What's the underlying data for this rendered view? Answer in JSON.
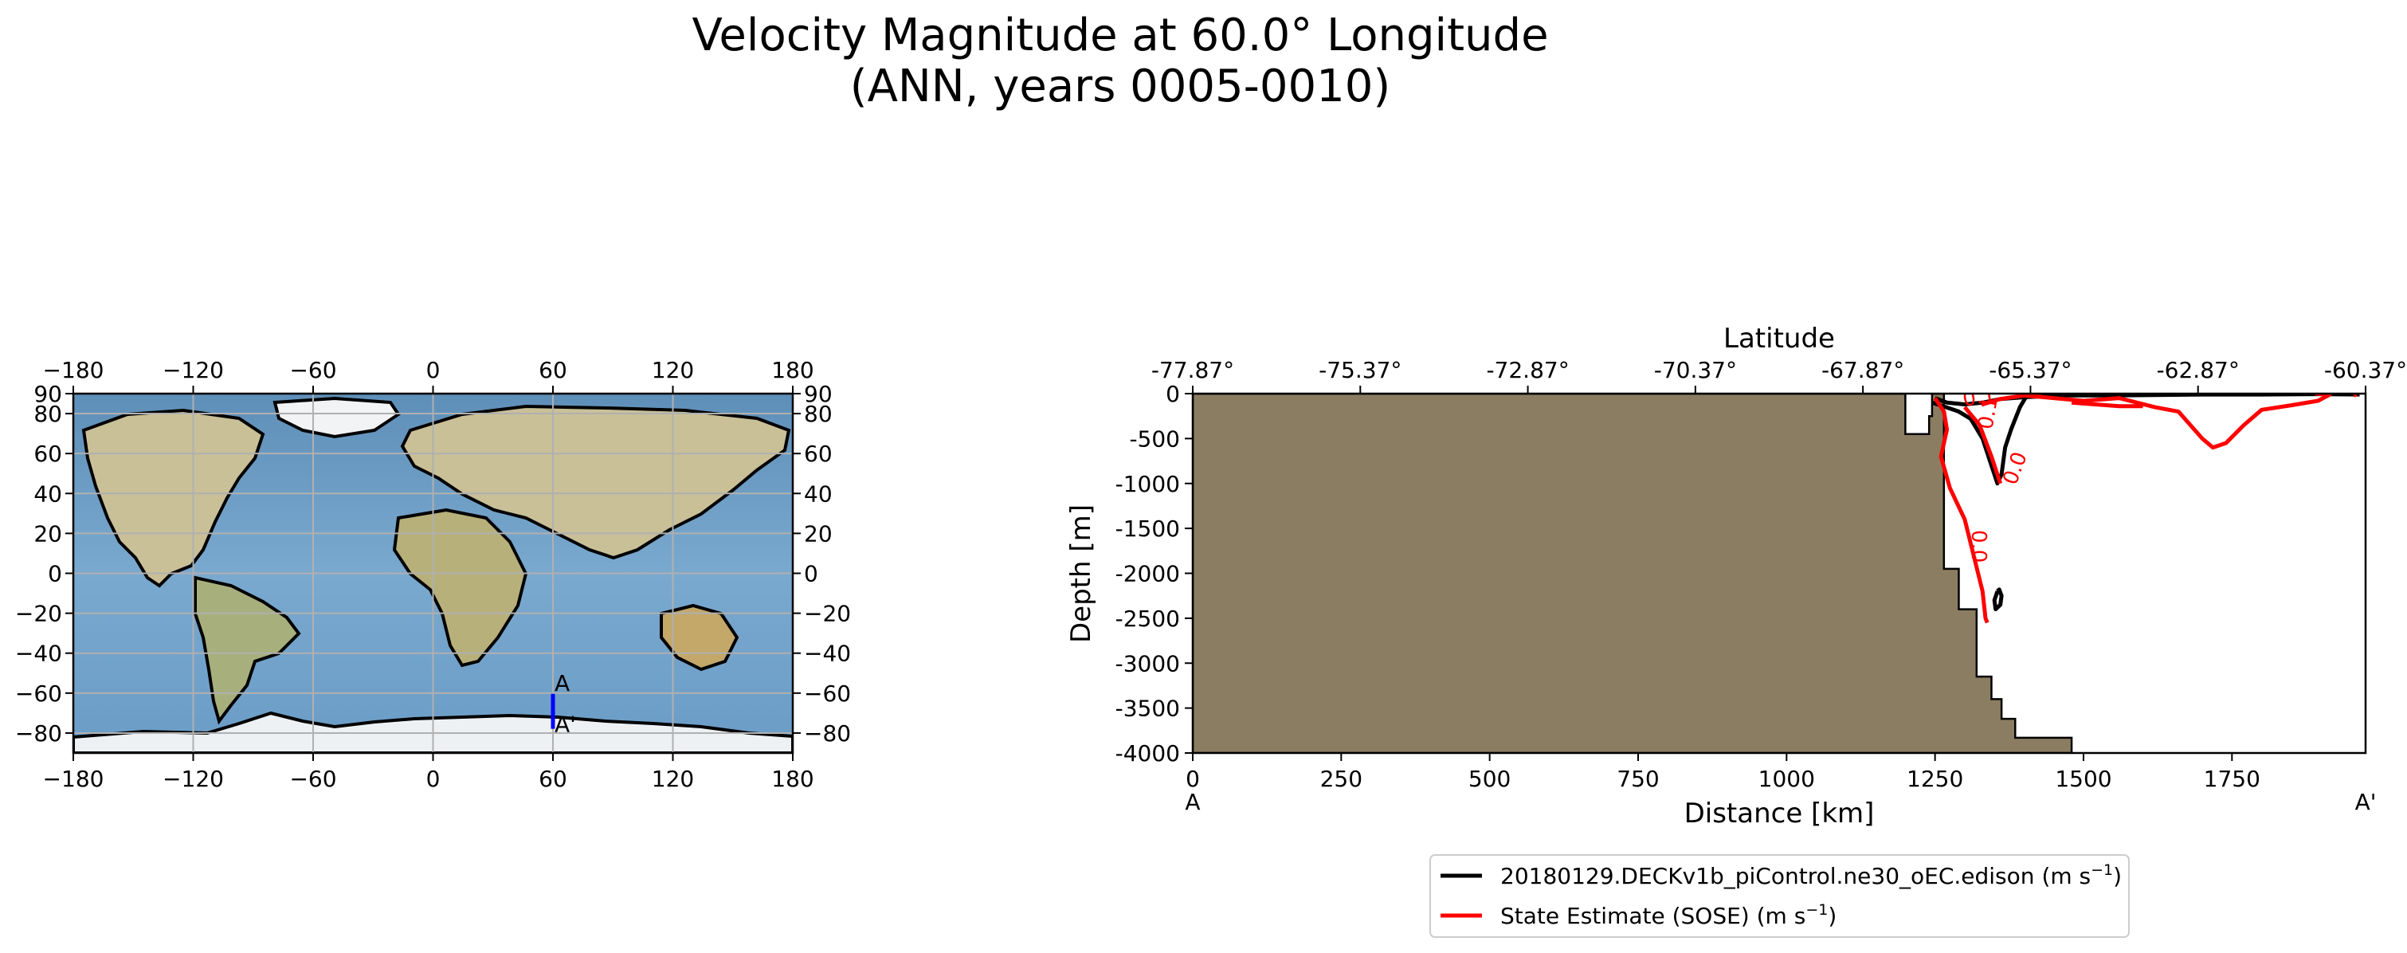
{
  "title": {
    "line1": "Velocity Magnitude at 60.0° Longitude",
    "line2": "(ANN, years 0005-0010)"
  },
  "chart_data": [
    {
      "type": "map",
      "projection": "PlateCarree",
      "x_ticks": [
        "−180",
        "−120",
        "−60",
        "0",
        "60",
        "120",
        "180"
      ],
      "y_ticks": [
        "90",
        "80",
        "60",
        "40",
        "20",
        "0",
        "−20",
        "−40",
        "−60",
        "−80"
      ],
      "xlim": [
        -180,
        180
      ],
      "ylim": [
        -90,
        90
      ],
      "transect": {
        "longitude": 60,
        "lat_start": -60.37,
        "lat_end": -77.87,
        "color": "#0000ff"
      },
      "markers": {
        "start": "A",
        "end": "A'"
      },
      "grid": true
    },
    {
      "type": "contour",
      "title": "",
      "xlabel": "Distance [km]",
      "ylabel": "Depth [m]",
      "top_xlabel": "Latitude",
      "xlim": [
        0,
        1975
      ],
      "ylim": [
        -4000,
        0
      ],
      "x_ticks": [
        "0",
        "250",
        "500",
        "750",
        "1000",
        "1250",
        "1500",
        "1750"
      ],
      "y_ticks": [
        "0",
        "-500",
        "-1000",
        "-1500",
        "-2000",
        "-2500",
        "-3000",
        "-3500",
        "-4000"
      ],
      "lat_ticks": [
        "-77.87°",
        "-75.37°",
        "-72.87°",
        "-70.37°",
        "-67.87°",
        "-65.37°",
        "-62.87°",
        "-60.37°"
      ],
      "section_ends": {
        "left": "A",
        "right": "A'"
      },
      "land_color": "#8b7d62",
      "bathymetry": [
        [
          0,
          0
        ],
        [
          1200,
          0
        ],
        [
          1200,
          -450
        ],
        [
          1240,
          -450
        ],
        [
          1240,
          -250
        ],
        [
          1245,
          -250
        ],
        [
          1245,
          0
        ],
        [
          1265,
          0
        ],
        [
          1265,
          -1950
        ],
        [
          1290,
          -1950
        ],
        [
          1290,
          -2400
        ],
        [
          1320,
          -2400
        ],
        [
          1320,
          -3150
        ],
        [
          1345,
          -3150
        ],
        [
          1345,
          -3400
        ],
        [
          1362,
          -3400
        ],
        [
          1362,
          -3620
        ],
        [
          1385,
          -3620
        ],
        [
          1385,
          -3830
        ],
        [
          1480,
          -3830
        ],
        [
          1480,
          -4000
        ],
        [
          0,
          -4000
        ]
      ],
      "contour_labels": [
        "0.1",
        "0.1",
        "0.0",
        "0.0"
      ],
      "series": [
        {
          "name": "20180129.DECKv1b_piControl.ne30_oEC.edison",
          "unit_base": "(m s",
          "unit_exp": "−1",
          "unit_close": ")",
          "color": "#000000",
          "lines": [
            [
              [
                1245,
                -100
              ],
              [
                1268,
                -150
              ],
              [
                1290,
                -200
              ],
              [
                1310,
                -280
              ],
              [
                1330,
                -500
              ],
              [
                1345,
                -800
              ],
              [
                1355,
                -1000
              ],
              [
                1362,
                -900
              ],
              [
                1368,
                -600
              ],
              [
                1378,
                -400
              ],
              [
                1393,
                -150
              ],
              [
                1402,
                -50
              ],
              [
                1410,
                0
              ]
            ],
            [
              [
                1250,
                -50
              ],
              [
                1270,
                -100
              ],
              [
                1300,
                -120
              ],
              [
                1330,
                -100
              ],
              [
                1360,
                -60
              ],
              [
                1400,
                -40
              ],
              [
                1470,
                -20
              ],
              [
                1560,
                -20
              ],
              [
                1620,
                -15
              ],
              [
                1700,
                -10
              ],
              [
                1800,
                -10
              ],
              [
                1895,
                -5
              ],
              [
                1965,
                -10
              ]
            ],
            [
              [
                1355,
                -2200
              ],
              [
                1350,
                -2300
              ],
              [
                1352,
                -2400
              ],
              [
                1360,
                -2350
              ],
              [
                1362,
                -2250
              ],
              [
                1358,
                -2180
              ],
              [
                1355,
                -2200
              ]
            ]
          ]
        },
        {
          "name": "State Estimate (SOSE)",
          "unit_base": "(m s",
          "unit_exp": "−1",
          "unit_close": ")",
          "color": "#ff0000",
          "lines": [
            [
              [
                1250,
                -50
              ],
              [
                1265,
                -200
              ],
              [
                1270,
                -400
              ],
              [
                1260,
                -700
              ],
              [
                1275,
                -1050
              ],
              [
                1300,
                -1400
              ],
              [
                1315,
                -1800
              ],
              [
                1330,
                -2200
              ],
              [
                1335,
                -2500
              ],
              [
                1338,
                -2550
              ]
            ],
            [
              [
                1300,
                -150
              ],
              [
                1325,
                -350
              ],
              [
                1345,
                -700
              ],
              [
                1360,
                -1000
              ]
            ],
            [
              [
                1330,
                -120
              ],
              [
                1360,
                -60
              ],
              [
                1400,
                -20
              ],
              [
                1500,
                -80
              ],
              [
                1560,
                -50
              ],
              [
                1620,
                -150
              ],
              [
                1660,
                -200
              ],
              [
                1700,
                -500
              ],
              [
                1718,
                -600
              ],
              [
                1740,
                -550
              ],
              [
                1770,
                -350
              ],
              [
                1800,
                -180
              ],
              [
                1850,
                -130
              ],
              [
                1895,
                -80
              ],
              [
                1915,
                -10
              ],
              [
                1890,
                0
              ]
            ],
            [
              [
                1480,
                -100
              ],
              [
                1520,
                -120
              ],
              [
                1560,
                -140
              ],
              [
                1600,
                -140
              ]
            ],
            [
              [
                1955,
                -20
              ],
              [
                1960,
                -10
              ]
            ]
          ]
        }
      ]
    }
  ]
}
